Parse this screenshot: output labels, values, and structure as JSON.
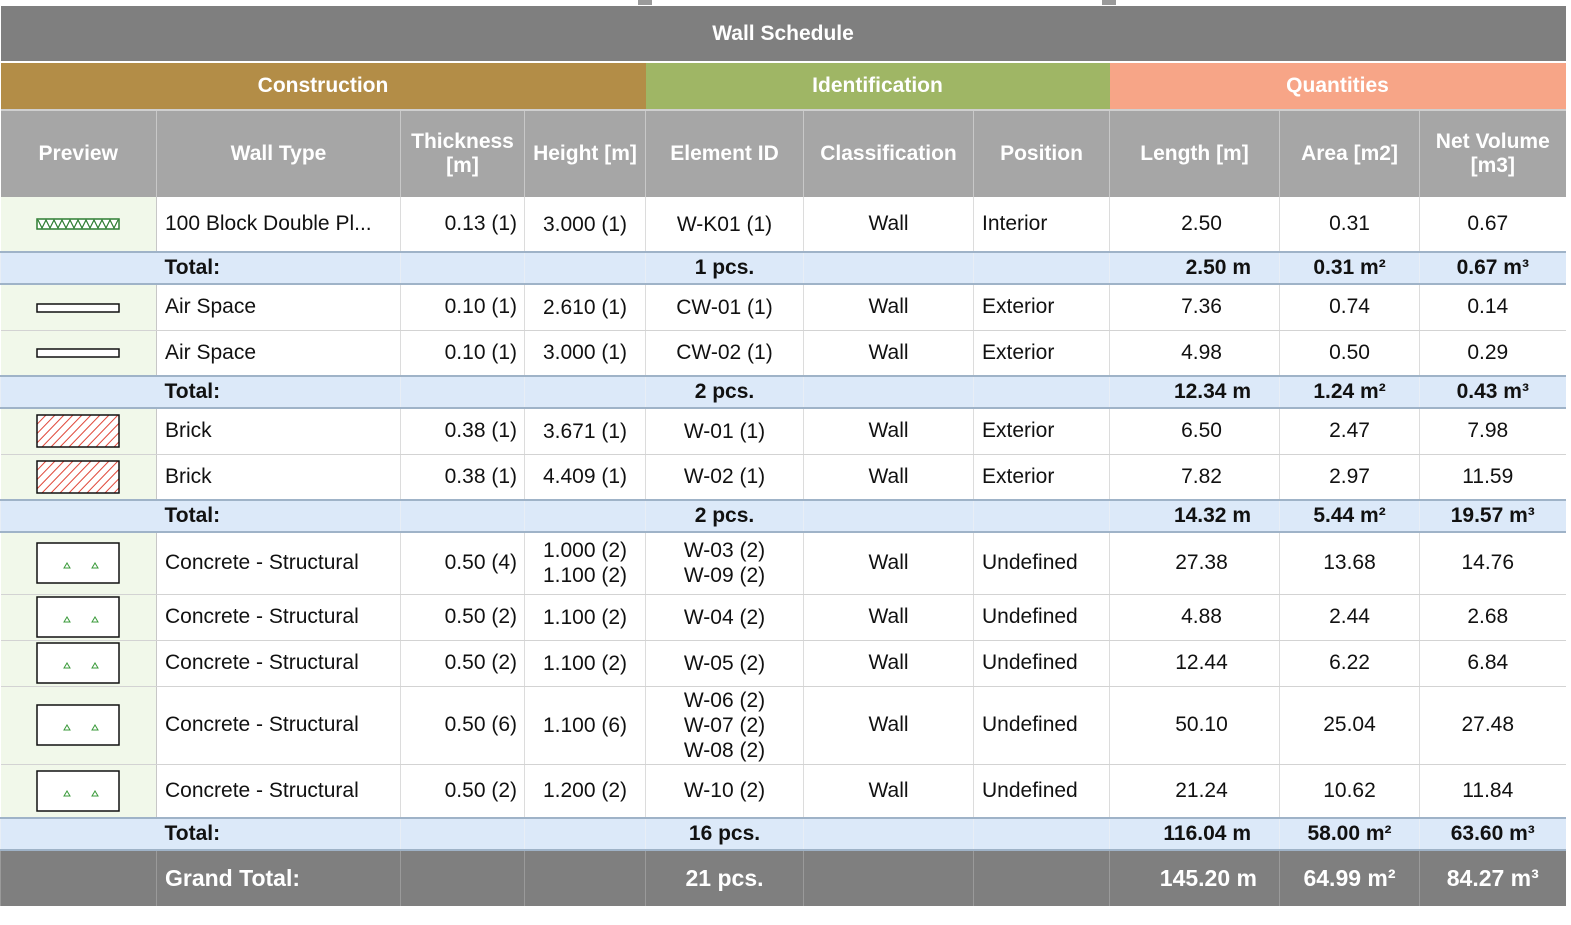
{
  "title": "Wall Schedule",
  "groups": {
    "construction": "Construction",
    "identification": "Identification",
    "quantities": "Quantities"
  },
  "columns": {
    "preview": "Preview",
    "wall_type": "Wall Type",
    "thickness": "Thickness [m]",
    "height": "Height [m]",
    "element_id": "Element ID",
    "classification": "Classification",
    "position": "Position",
    "length": "Length [m]",
    "area": "Area [m2]",
    "net_volume": "Net Volume [m3]"
  },
  "colors": {
    "title_bar": "#7f7f7f",
    "construction": "#b38d47",
    "identification": "#9fb665",
    "quantities": "#f7a587",
    "header": "#a6a6a6",
    "total_row": "#dce9f9",
    "preview_cell": "#f1f8ea"
  },
  "groups_data": [
    {
      "rows": [
        {
          "preview": "block-double-plaster-icon",
          "wall_type": "100 Block Double Pl...",
          "thickness": "0.13 (1)",
          "height": "3.000 (1)",
          "element_id": "W-K01 (1)",
          "classification": "Wall",
          "position": "Interior",
          "length": "2.50",
          "area": "0.31",
          "net_volume": "0.67"
        }
      ],
      "total": {
        "label": "Total:",
        "count": "1 pcs.",
        "length": "2.50 m",
        "area": "0.31 m²",
        "net_volume": "0.67 m³"
      }
    },
    {
      "rows": [
        {
          "preview": "air-space-icon",
          "wall_type": "Air Space",
          "thickness": "0.10 (1)",
          "height": "2.610 (1)",
          "element_id": "CW-01 (1)",
          "classification": "Wall",
          "position": "Exterior",
          "length": "7.36",
          "area": "0.74",
          "net_volume": "0.14"
        },
        {
          "preview": "air-space-icon",
          "wall_type": "Air Space",
          "thickness": "0.10 (1)",
          "height": "3.000 (1)",
          "element_id": "CW-02 (1)",
          "classification": "Wall",
          "position": "Exterior",
          "length": "4.98",
          "area": "0.50",
          "net_volume": "0.29"
        }
      ],
      "total": {
        "label": "Total:",
        "count": "2 pcs.",
        "length": "12.34 m",
        "area": "1.24 m²",
        "net_volume": "0.43 m³"
      }
    },
    {
      "rows": [
        {
          "preview": "brick-hatch-icon",
          "wall_type": "Brick",
          "thickness": "0.38 (1)",
          "height": "3.671 (1)",
          "element_id": "W-01 (1)",
          "classification": "Wall",
          "position": "Exterior",
          "length": "6.50",
          "area": "2.47",
          "net_volume": "7.98"
        },
        {
          "preview": "brick-hatch-icon",
          "wall_type": "Brick",
          "thickness": "0.38 (1)",
          "height": "4.409 (1)",
          "element_id": "W-02 (1)",
          "classification": "Wall",
          "position": "Exterior",
          "length": "7.82",
          "area": "2.97",
          "net_volume": "11.59"
        }
      ],
      "total": {
        "label": "Total:",
        "count": "2 pcs.",
        "length": "14.32 m",
        "area": "5.44 m²",
        "net_volume": "19.57 m³"
      }
    },
    {
      "rows": [
        {
          "preview": "concrete-icon",
          "wall_type": "Concrete - Structural",
          "thickness": "0.50 (4)",
          "height": "1.000 (2)\n1.100 (2)",
          "element_id": "W-03 (2)\nW-09 (2)",
          "classification": "Wall",
          "position": "Undefined",
          "length": "27.38",
          "area": "13.68",
          "net_volume": "14.76"
        },
        {
          "preview": "concrete-icon",
          "wall_type": "Concrete - Structural",
          "thickness": "0.50 (2)",
          "height": "1.100 (2)",
          "element_id": "W-04 (2)",
          "classification": "Wall",
          "position": "Undefined",
          "length": "4.88",
          "area": "2.44",
          "net_volume": "2.68"
        },
        {
          "preview": "concrete-icon",
          "wall_type": "Concrete - Structural",
          "thickness": "0.50 (2)",
          "height": "1.100 (2)",
          "element_id": "W-05 (2)",
          "classification": "Wall",
          "position": "Undefined",
          "length": "12.44",
          "area": "6.22",
          "net_volume": "6.84"
        },
        {
          "preview": "concrete-icon",
          "wall_type": "Concrete - Structural",
          "thickness": "0.50 (6)",
          "height": "1.100 (6)",
          "element_id": "W-06 (2)\nW-07 (2)\nW-08 (2)",
          "classification": "Wall",
          "position": "Undefined",
          "length": "50.10",
          "area": "25.04",
          "net_volume": "27.48"
        },
        {
          "preview": "concrete-icon",
          "wall_type": "Concrete - Structural",
          "thickness": "0.50 (2)",
          "height": "1.200 (2)",
          "element_id": "W-10 (2)",
          "classification": "Wall",
          "position": "Undefined",
          "length": "21.24",
          "area": "10.62",
          "net_volume": "11.84"
        }
      ],
      "total": {
        "label": "Total:",
        "count": "16 pcs.",
        "length": "116.04 m",
        "area": "58.00 m²",
        "net_volume": "63.60 m³"
      }
    }
  ],
  "grand_total": {
    "label": "Grand Total:",
    "count": "21 pcs.",
    "length": "145.20 m",
    "area": "64.99 m²",
    "net_volume": "84.27 m³"
  }
}
